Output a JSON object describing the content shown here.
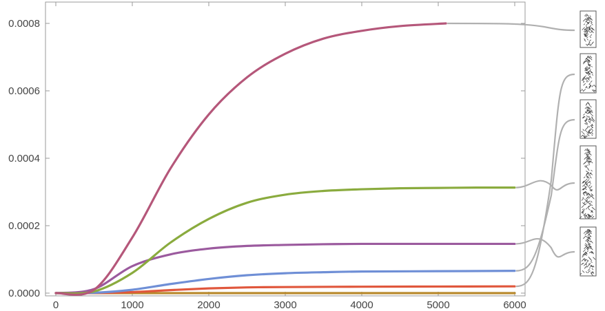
{
  "chart_data": {
    "type": "line",
    "title": "",
    "xlabel": "",
    "ylabel": "",
    "xlim": [
      0,
      6000
    ],
    "ylim": [
      0,
      0.00082
    ],
    "x_ticks": [
      0,
      1000,
      2000,
      3000,
      4000,
      5000,
      6000
    ],
    "x_tick_labels": [
      "0",
      "1000",
      "2000",
      "3000",
      "4000",
      "5000",
      "6000"
    ],
    "y_ticks": [
      0,
      0.0002,
      0.0004,
      0.0006,
      0.0008
    ],
    "y_tick_labels": [
      "0.0000",
      "0.0002",
      "0.0004",
      "0.0006",
      "0.0008"
    ],
    "grid": false,
    "legend": "right side: callout lines to small pattern thumbnails",
    "series": [
      {
        "color": "#b5577a",
        "x_end": 5100,
        "x": [
          0,
          500,
          1000,
          1500,
          2000,
          2500,
          3000,
          3500,
          4000,
          4500,
          5100
        ],
        "values": [
          0,
          1e-05,
          0.000165,
          0.00037,
          0.00053,
          0.00064,
          0.00071,
          0.000755,
          0.000778,
          0.000792,
          0.0008
        ]
      },
      {
        "color": "#8aab3e",
        "x_end": 6000,
        "x": [
          0,
          500,
          1000,
          1500,
          2000,
          2500,
          3000,
          3500,
          4000,
          4500,
          5000,
          5500,
          6000
        ],
        "values": [
          0,
          5e-06,
          6e-05,
          0.00015,
          0.00022,
          0.000268,
          0.000292,
          0.000303,
          0.000308,
          0.000311,
          0.000312,
          0.000313,
          0.000313
        ]
      },
      {
        "color": "#9b5a9e",
        "x_end": 6000,
        "x": [
          0,
          500,
          1000,
          1500,
          2000,
          2500,
          3000,
          3500,
          4000,
          5000,
          6000
        ],
        "values": [
          0,
          1.2e-05,
          8e-05,
          0.000115,
          0.000132,
          0.00014,
          0.000143,
          0.000145,
          0.000146,
          0.000146,
          0.000146
        ]
      },
      {
        "color": "#6f8fd6",
        "x_end": 6000,
        "x": [
          0,
          500,
          1000,
          1500,
          2000,
          2500,
          3000,
          3500,
          4000,
          5000,
          6000
        ],
        "values": [
          0,
          1e-06,
          1e-05,
          2.7e-05,
          4.2e-05,
          5.3e-05,
          5.9e-05,
          6.2e-05,
          6.4e-05,
          6.5e-05,
          6.6e-05
        ]
      },
      {
        "color": "#e0573c",
        "x_end": 6000,
        "x": [
          0,
          500,
          1000,
          1500,
          2000,
          2500,
          3000,
          4000,
          5000,
          6000
        ],
        "values": [
          0,
          3e-07,
          3e-06,
          9e-06,
          1.4e-05,
          1.7e-05,
          1.8e-05,
          1.9e-05,
          1.95e-05,
          2e-05
        ]
      },
      {
        "color": "#b98a2e",
        "x_end": 6000,
        "x": [
          0,
          6000
        ],
        "values": [
          0,
          0
        ]
      }
    ],
    "callouts": [
      {
        "series_index": 0,
        "thumb": "thumb-1"
      },
      {
        "series_index": 1,
        "thumb": "thumb-4"
      },
      {
        "series_index": 2,
        "thumb": "thumb-5"
      },
      {
        "series_index": 3,
        "thumb": "thumb-3"
      },
      {
        "series_index": 4,
        "thumb": "thumb-2"
      }
    ],
    "callout_color": "#b0b0b0",
    "thumbnails": [
      "pattern-thumbnail",
      "pattern-thumbnail",
      "pattern-thumbnail",
      "pattern-thumbnail",
      "pattern-thumbnail"
    ]
  }
}
